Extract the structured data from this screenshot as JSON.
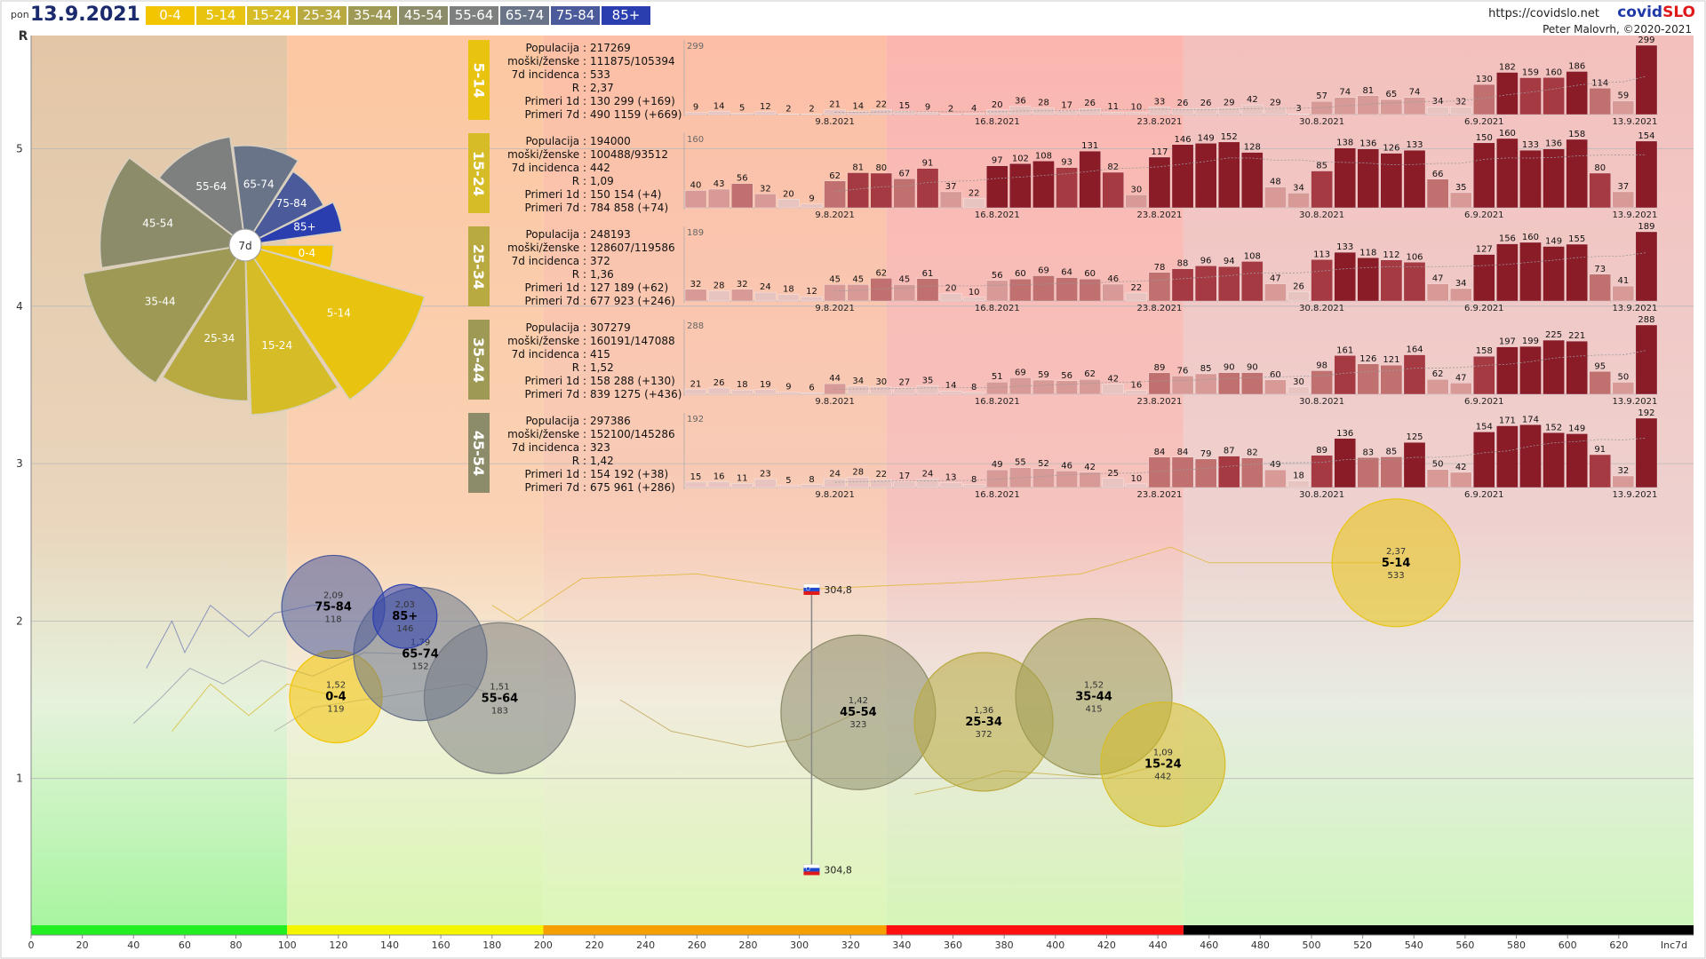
{
  "header": {
    "day": "pon",
    "date": "13.9.2021",
    "site": "https://covidslo.net",
    "brand_a": "covid",
    "brand_b": "SLO",
    "author": "Peter Malovrh, ©2020-2021"
  },
  "legend": [
    {
      "label": "0-4",
      "color": "#f2c500"
    },
    {
      "label": "5-14",
      "color": "#e8c410"
    },
    {
      "label": "15-24",
      "color": "#d6bc26"
    },
    {
      "label": "25-34",
      "color": "#b8aa40"
    },
    {
      "label": "35-44",
      "color": "#9e9a55"
    },
    {
      "label": "45-54",
      "color": "#8c8c6a"
    },
    {
      "label": "55-64",
      "color": "#7e8080"
    },
    {
      "label": "65-74",
      "color": "#6a7488"
    },
    {
      "label": "75-84",
      "color": "#4a5a9a"
    },
    {
      "label": "85+",
      "color": "#2a3eb0"
    }
  ],
  "chart_data": [
    {
      "type": "scatter",
      "xlabel": "Inc7d",
      "ylabel": "R",
      "xlim": [
        0,
        650
      ],
      "ylim": [
        0,
        5.6
      ],
      "x_ticks": [
        0,
        20,
        40,
        60,
        80,
        100,
        120,
        140,
        160,
        180,
        200,
        220,
        240,
        260,
        280,
        300,
        320,
        340,
        360,
        380,
        400,
        420,
        440,
        460,
        480,
        500,
        520,
        540,
        560,
        580,
        600,
        620
      ],
      "y_ticks": [
        1,
        2,
        3,
        4,
        5
      ],
      "zones": [
        {
          "from": 0,
          "to": 100,
          "color": "#22ee22"
        },
        {
          "from": 100,
          "to": 200,
          "color": "#f5f500"
        },
        {
          "from": 200,
          "to": 334,
          "color": "#f5a000"
        },
        {
          "from": 334,
          "to": 450,
          "color": "#ff1010"
        },
        {
          "from": 450,
          "to": 650,
          "color": "#000000"
        }
      ],
      "bubbles": [
        {
          "name": "0-4",
          "r": "1,52",
          "x": 119,
          "y": 1.52,
          "value": "119"
        },
        {
          "name": "5-14",
          "r": "2,37",
          "x": 533,
          "y": 2.37,
          "value": "533"
        },
        {
          "name": "15-24",
          "r": "1,09",
          "x": 442,
          "y": 1.09,
          "value": "442"
        },
        {
          "name": "25-34",
          "r": "1,36",
          "x": 372,
          "y": 1.36,
          "value": "372"
        },
        {
          "name": "35-44",
          "r": "1,52",
          "x": 415,
          "y": 1.52,
          "value": "415"
        },
        {
          "name": "45-54",
          "r": "1,42",
          "x": 323,
          "y": 1.42,
          "value": "323"
        },
        {
          "name": "55-64",
          "r": "1,51",
          "x": 183,
          "y": 1.51,
          "value": "183"
        },
        {
          "name": "65-74",
          "r": "1,79",
          "x": 152,
          "y": 1.79,
          "value": "152"
        },
        {
          "name": "75-84",
          "r": "2,09",
          "x": 118,
          "y": 2.09,
          "value": "118"
        },
        {
          "name": "85+",
          "r": "2,03",
          "x": 146,
          "y": 2.03,
          "value": "146"
        }
      ],
      "slovenia_marker": {
        "label": "304,8",
        "x": 304.8,
        "y_top": 2.2,
        "y_bottom": 0.42
      }
    },
    {
      "type": "pie",
      "center_label": "7d",
      "slices": [
        {
          "name": "0-4",
          "value": 119
        },
        {
          "name": "5-14",
          "value": 533
        },
        {
          "name": "15-24",
          "value": 442
        },
        {
          "name": "25-34",
          "value": 372
        },
        {
          "name": "35-44",
          "value": 415
        },
        {
          "name": "45-54",
          "value": 323
        },
        {
          "name": "55-64",
          "value": 183
        },
        {
          "name": "65-74",
          "value": 152
        },
        {
          "name": "75-84",
          "value": 118
        },
        {
          "name": "85+",
          "value": 146
        }
      ]
    },
    {
      "type": "bar",
      "x_labels": [
        "9.8.2021",
        "16.8.2021",
        "23.8.2021",
        "30.8.2021",
        "6.9.2021",
        "13.9.2021"
      ],
      "groups": [
        {
          "name": "5-14",
          "max_label": "299",
          "stats": {
            "Populacija": "217269",
            "moški/ženske": "111875/105394",
            "7d incidenca": "533",
            "R": "2,37",
            "Primeri 1d": "130 299 (+169)",
            "Primeri 7d": "490 1159 (+669)"
          },
          "values": [
            9,
            14,
            5,
            12,
            2,
            2,
            21,
            14,
            22,
            15,
            9,
            2,
            4,
            20,
            36,
            28,
            17,
            26,
            11,
            10,
            33,
            26,
            26,
            29,
            42,
            29,
            3,
            57,
            74,
            81,
            65,
            74,
            34,
            32,
            130,
            182,
            159,
            160,
            186,
            114,
            59,
            299
          ]
        },
        {
          "name": "15-24",
          "max_label": "160",
          "stats": {
            "Populacija": "194000",
            "moški/ženske": "100488/93512",
            "7d incidenca": "442",
            "R": "1,09",
            "Primeri 1d": "150 154 (+4)",
            "Primeri 7d": "784 858 (+74)"
          },
          "values": [
            40,
            43,
            56,
            32,
            20,
            9,
            62,
            81,
            80,
            67,
            91,
            37,
            22,
            97,
            102,
            108,
            93,
            131,
            82,
            30,
            117,
            146,
            149,
            152,
            128,
            48,
            34,
            85,
            138,
            136,
            126,
            133,
            66,
            35,
            150,
            160,
            133,
            136,
            158,
            80,
            37,
            154
          ]
        },
        {
          "name": "25-34",
          "max_label": "189",
          "stats": {
            "Populacija": "248193",
            "moški/ženske": "128607/119586",
            "7d incidenca": "372",
            "R": "1,36",
            "Primeri 1d": "127 189 (+62)",
            "Primeri 7d": "677 923 (+246)"
          },
          "values": [
            32,
            28,
            32,
            24,
            18,
            12,
            45,
            45,
            62,
            45,
            61,
            20,
            10,
            56,
            60,
            69,
            64,
            60,
            46,
            22,
            78,
            88,
            96,
            94,
            108,
            47,
            26,
            113,
            133,
            118,
            112,
            106,
            47,
            34,
            127,
            156,
            160,
            149,
            155,
            73,
            41,
            189
          ]
        },
        {
          "name": "35-44",
          "max_label": "288",
          "stats": {
            "Populacija": "307279",
            "moški/ženske": "160191/147088",
            "7d incidenca": "415",
            "R": "1,52",
            "Primeri 1d": "158 288 (+130)",
            "Primeri 7d": "839 1275 (+436)"
          },
          "values": [
            21,
            26,
            18,
            19,
            9,
            6,
            44,
            34,
            30,
            27,
            35,
            14,
            8,
            51,
            69,
            59,
            56,
            62,
            42,
            16,
            89,
            76,
            85,
            90,
            90,
            60,
            30,
            98,
            161,
            126,
            121,
            164,
            62,
            47,
            158,
            197,
            199,
            225,
            221,
            95,
            50,
            288
          ]
        },
        {
          "name": "45-54",
          "max_label": "192",
          "stats": {
            "Populacija": "297386",
            "moški/ženske": "152100/145286",
            "7d incidenca": "323",
            "R": "1,42",
            "Primeri 1d": "154 192 (+38)",
            "Primeri 7d": "675 961 (+286)"
          },
          "values": [
            15,
            16,
            11,
            23,
            5,
            8,
            24,
            28,
            22,
            17,
            24,
            13,
            8,
            49,
            55,
            52,
            46,
            42,
            25,
            10,
            84,
            84,
            79,
            87,
            82,
            49,
            18,
            89,
            136,
            83,
            85,
            125,
            50,
            42,
            154,
            171,
            174,
            152,
            149,
            91,
            32,
            192
          ]
        }
      ]
    }
  ]
}
